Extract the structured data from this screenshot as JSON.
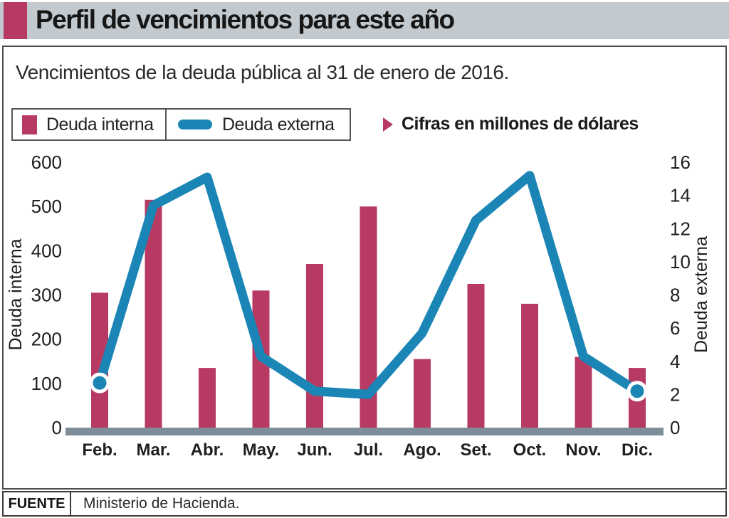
{
  "header": {
    "title": "Perfil de vencimientos para este año"
  },
  "subtitle": "Vencimientos de la deuda pública al 31 de enero de 2016.",
  "legend": {
    "interna_label": "Deuda interna",
    "externa_label": "Deuda externa"
  },
  "units_note": "Cifras en millones de dólares",
  "footer": {
    "source_label": "FUENTE",
    "source_value": "Ministerio de Hacienda."
  },
  "colors": {
    "magenta": "#b73a63",
    "blue": "#1b86b6",
    "baseline_grey": "#7e8e99",
    "header_bg": "#c2cacf"
  },
  "chart_data": {
    "type": "bar",
    "title": "Vencimientos de la deuda pública al 31 de enero de 2016",
    "units": "millones de dólares",
    "categories": [
      "Feb.",
      "Mar.",
      "Abr.",
      "May.",
      "Jun.",
      "Jul.",
      "Ago.",
      "Set.",
      "Oct.",
      "Nov.",
      "Dic."
    ],
    "series": [
      {
        "name": "Deuda interna",
        "kind": "bar",
        "axis": "left",
        "values": [
          305,
          515,
          135,
          310,
          370,
          500,
          155,
          325,
          280,
          160,
          135
        ]
      },
      {
        "name": "Deuda externa",
        "kind": "line",
        "axis": "right",
        "values": [
          2.7,
          13.4,
          15.1,
          4.3,
          2.2,
          2.0,
          5.7,
          12.5,
          15.2,
          4.3,
          2.2
        ]
      }
    ],
    "left_axis": {
      "label": "Deuda interna",
      "range": [
        0,
        600
      ],
      "ticks": [
        0,
        100,
        200,
        300,
        400,
        500,
        600
      ]
    },
    "right_axis": {
      "label": "Deuda externa",
      "range": [
        0,
        16
      ],
      "ticks": [
        0,
        2,
        4,
        6,
        8,
        10,
        12,
        14,
        16
      ]
    },
    "grid": false,
    "legend_position": "top-left",
    "line_endpoint_markers": [
      "Feb.",
      "Dic."
    ]
  }
}
